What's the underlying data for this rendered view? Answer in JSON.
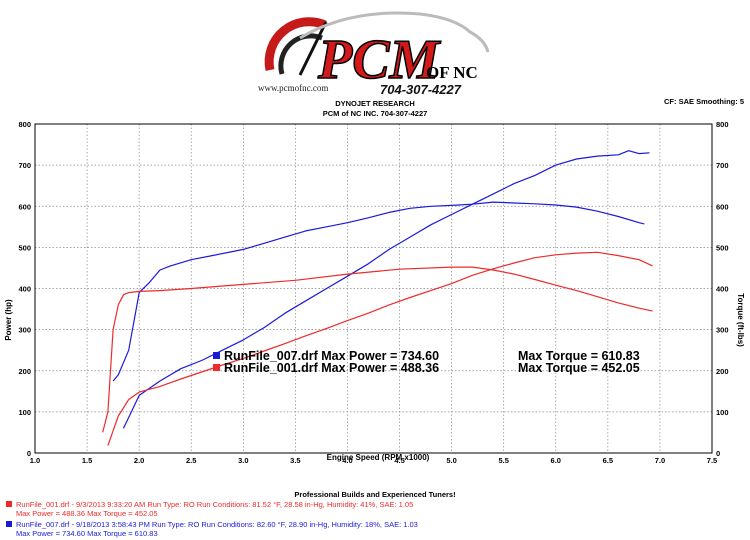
{
  "logo": {
    "brand": "PCM",
    "brand_suffix": "OF NC",
    "phone": "704-307-4227",
    "website": "www.pcmofnc.com"
  },
  "header": {
    "line1": "DYNOJET RESEARCH",
    "line2": "PCM of NC INC. 704-307-4227",
    "settings": "CF: SAE   Smoothing: 5"
  },
  "chart_data": {
    "type": "line",
    "xlabel": "Engine Speed (RPM x1000)",
    "ylabel": "Power (hp)",
    "y2label": "Torque (ft-lbs)",
    "xlim": [
      1.0,
      7.5
    ],
    "ylim": [
      0,
      800
    ],
    "y2lim": [
      0,
      800
    ],
    "xticks": [
      "1.0",
      "1.5",
      "2.0",
      "2.5",
      "3.0",
      "3.5",
      "4.0",
      "4.5",
      "5.0",
      "5.5",
      "6.0",
      "6.5",
      "7.0",
      "7.5"
    ],
    "yticks": [
      "0",
      "100",
      "200",
      "300",
      "400",
      "500",
      "600",
      "700",
      "800"
    ],
    "grid": true,
    "series": [
      {
        "name": "RunFile_007.drf Power",
        "color": "#1a1adb",
        "x": [
          1.85,
          2.0,
          2.2,
          2.4,
          2.6,
          2.8,
          3.0,
          3.2,
          3.4,
          3.6,
          3.8,
          4.0,
          4.2,
          4.4,
          4.6,
          4.8,
          5.0,
          5.2,
          5.4,
          5.6,
          5.8,
          6.0,
          6.2,
          6.4,
          6.6,
          6.7,
          6.8,
          6.9
        ],
        "y": [
          60,
          140,
          175,
          205,
          225,
          250,
          275,
          305,
          340,
          370,
          400,
          430,
          460,
          495,
          525,
          555,
          580,
          605,
          630,
          655,
          675,
          700,
          715,
          722,
          725,
          735,
          728,
          730
        ]
      },
      {
        "name": "RunFile_007.drf Torque",
        "color": "#1a1adb",
        "x": [
          1.75,
          1.8,
          1.9,
          2.0,
          2.1,
          2.2,
          2.3,
          2.5,
          2.7,
          2.9,
          3.0,
          3.2,
          3.4,
          3.6,
          3.8,
          4.0,
          4.2,
          4.4,
          4.6,
          4.8,
          5.0,
          5.2,
          5.4,
          5.6,
          5.8,
          6.0,
          6.2,
          6.4,
          6.6,
          6.8,
          6.85
        ],
        "y": [
          175,
          190,
          250,
          390,
          415,
          445,
          455,
          470,
          480,
          490,
          495,
          510,
          525,
          540,
          550,
          560,
          572,
          585,
          595,
          600,
          602,
          605,
          610,
          608,
          606,
          603,
          598,
          588,
          575,
          560,
          557
        ]
      },
      {
        "name": "RunFile_001.drf Power",
        "color": "#ee2a2a",
        "x": [
          1.7,
          1.8,
          1.9,
          2.0,
          2.2,
          2.4,
          2.6,
          2.8,
          3.0,
          3.2,
          3.4,
          3.6,
          3.8,
          4.0,
          4.2,
          4.4,
          4.6,
          4.8,
          5.0,
          5.2,
          5.4,
          5.6,
          5.8,
          6.0,
          6.2,
          6.4,
          6.6,
          6.8,
          6.93
        ],
        "y": [
          18,
          90,
          130,
          148,
          162,
          180,
          197,
          214,
          230,
          248,
          266,
          285,
          303,
          322,
          340,
          360,
          378,
          395,
          412,
          432,
          448,
          462,
          475,
          482,
          486,
          488,
          480,
          470,
          455
        ]
      },
      {
        "name": "RunFile_001.drf Torque",
        "color": "#ee2a2a",
        "x": [
          1.65,
          1.7,
          1.75,
          1.8,
          1.85,
          1.9,
          2.0,
          2.2,
          2.5,
          3.0,
          3.5,
          4.0,
          4.5,
          5.0,
          5.2,
          5.4,
          5.6,
          5.8,
          6.0,
          6.2,
          6.4,
          6.6,
          6.8,
          6.93
        ],
        "y": [
          50,
          100,
          300,
          360,
          385,
          390,
          393,
          395,
          400,
          410,
          420,
          435,
          447,
          452,
          452,
          445,
          435,
          422,
          408,
          395,
          380,
          365,
          352,
          345
        ]
      }
    ],
    "annotations": [
      {
        "run": "RunFile_007.drf",
        "power_label": "Max Power = 734.60",
        "torque_label": "Max Torque = 610.83",
        "color": "#1a1adb"
      },
      {
        "run": "RunFile_001.drf",
        "power_label": "Max Power = 488.36",
        "torque_label": "Max Torque = 452.05",
        "color": "#ee2a2a"
      }
    ]
  },
  "footer": {
    "tagline": "Professional Builds and Experienced Tuners!",
    "runs": [
      {
        "color": "#ee2a2a",
        "line1": "RunFile_001.drf - 9/3/2013 9:33:20 AM  Run Type: RO  Run Conditions: 81.52 °F, 28.58 in-Hg,  Humidity:  41%, SAE: 1.05",
        "line2": "Max Power = 488.36   Max Torque = 452.05"
      },
      {
        "color": "#1a1adb",
        "line1": "RunFile_007.drf - 9/18/2013 3:58:43 PM  Run Type: RO  Run Conditions: 82.60 °F, 28.90 in-Hg,  Humidity:  18%, SAE: 1.03",
        "line2": "Max Power = 734.60   Max Torque = 610.83"
      }
    ]
  }
}
